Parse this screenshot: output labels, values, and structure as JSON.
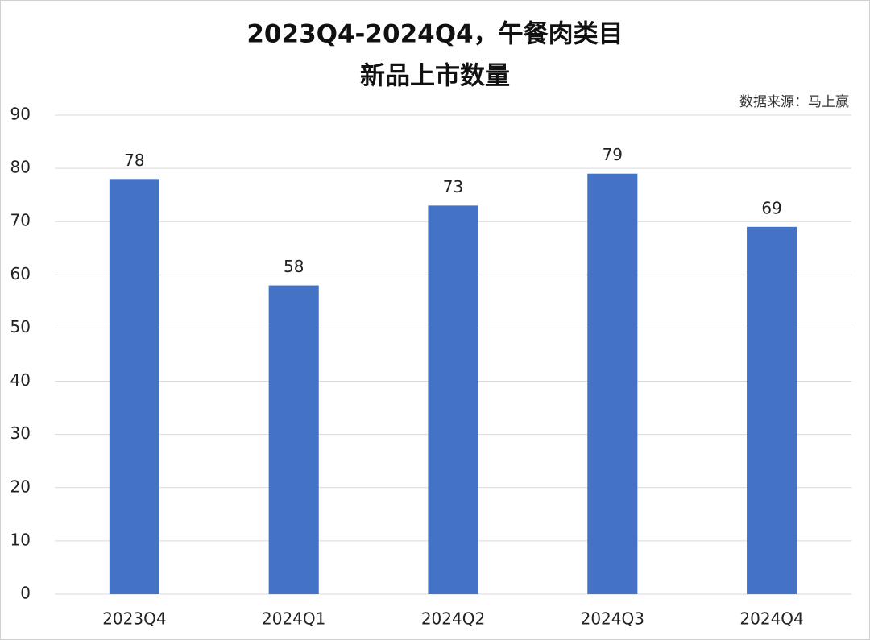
{
  "chart_data": {
    "type": "bar",
    "title": [
      "2023Q4-2024Q4，午餐肉类目",
      "新品上市数量"
    ],
    "annotation": "数据来源：马上赢",
    "categories": [
      "2023Q4",
      "2024Q1",
      "2024Q2",
      "2024Q3",
      "2024Q4"
    ],
    "values": [
      78,
      58,
      73,
      79,
      69
    ],
    "color": "#4472c4",
    "ylim": [
      0,
      90
    ],
    "yticks": [
      0,
      10,
      20,
      30,
      40,
      50,
      60,
      70,
      80,
      90
    ],
    "grid": true
  }
}
